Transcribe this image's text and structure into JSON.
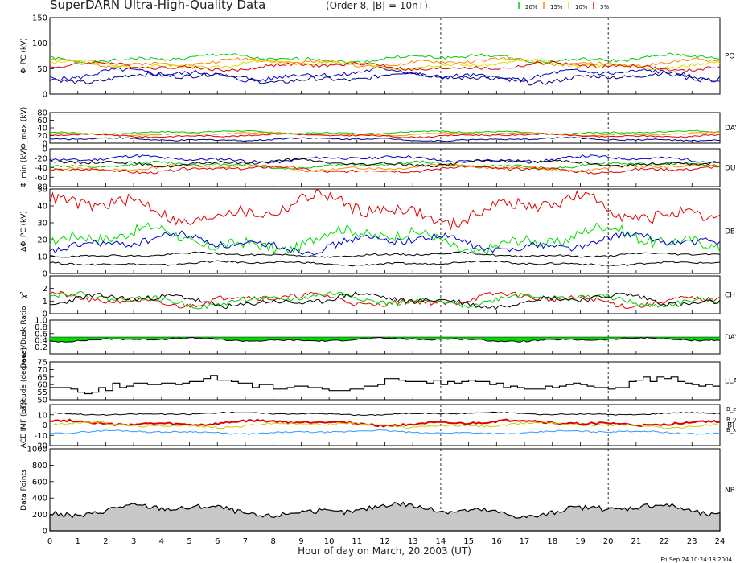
{
  "header": {
    "title": "SuperDARN Ultra-High-Quality Data",
    "subtitle": "(Order 8, |B| = 10nT)",
    "quality_legend": [
      {
        "label": "20%",
        "color": "#00cc00"
      },
      {
        "label": "15%",
        "color": "#ff8800"
      },
      {
        "label": "10%",
        "color": "#dddd00"
      },
      {
        "label": "5%",
        "color": "#dd0000"
      }
    ],
    "timestamp": "Fri Sep 24 10:24:18 2004"
  },
  "colors": {
    "c20": "#00cc00",
    "c15": "#ff8800",
    "c10": "#dddd00",
    "c5": "#dd0000",
    "dark_blue": "#000080",
    "blue": "#0000cc",
    "green": "#00e000",
    "black": "#000000",
    "fill_gray": "#c8c8c8"
  },
  "chart_data": [
    {
      "id": "phi_pc",
      "type": "line",
      "ylabel": "Φ_PC (kV)",
      "ylim": [
        0,
        150
      ],
      "yticks": [
        "0",
        "50",
        "100",
        "150"
      ],
      "side_label": "PO PO",
      "series": [
        {
          "color": "#00cc00",
          "base": 70,
          "amp": 9,
          "seed": 1
        },
        {
          "color": "#ff8800",
          "base": 62,
          "amp": 9,
          "seed": 2
        },
        {
          "color": "#dddd00",
          "base": 58,
          "amp": 9,
          "seed": 3
        },
        {
          "color": "#dd0000",
          "base": 54,
          "amp": 9,
          "seed": 4
        },
        {
          "color": "#0000cc",
          "base": 38,
          "amp": 13,
          "seed": 5
        },
        {
          "color": "#000080",
          "base": 32,
          "amp": 12,
          "seed": 6
        }
      ]
    },
    {
      "id": "phi_max",
      "type": "line",
      "ylabel": "Φ_max (kV)",
      "ylim": [
        0,
        80
      ],
      "yticks": [
        "0",
        "20",
        "40",
        "60",
        "80"
      ],
      "side_label": "DAY",
      "series": [
        {
          "color": "#00cc00",
          "base": 28,
          "amp": 5,
          "seed": 7
        },
        {
          "color": "#ff8800",
          "base": 24,
          "amp": 5,
          "seed": 8
        },
        {
          "color": "#dd0000",
          "base": 20,
          "amp": 5,
          "seed": 9
        },
        {
          "color": "#000080",
          "base": 10,
          "amp": 5,
          "seed": 10
        }
      ]
    },
    {
      "id": "phi_min",
      "type": "line",
      "ylabel": "Φ_min (kV)",
      "ylim": [
        -80,
        0
      ],
      "yticks": [
        "-80",
        "-60",
        "-40",
        "-20",
        "0"
      ],
      "side_label": "DU",
      "series": [
        {
          "color": "#0000cc",
          "base": -22,
          "amp": 8,
          "seed": 11
        },
        {
          "color": "#00cc00",
          "base": -35,
          "amp": 8,
          "seed": 12
        },
        {
          "color": "#ff8800",
          "base": -40,
          "amp": 8,
          "seed": 13
        },
        {
          "color": "#dd0000",
          "base": -44,
          "amp": 8,
          "seed": 14
        },
        {
          "color": "#000000",
          "base": -30,
          "amp": 8,
          "seed": 15
        }
      ]
    },
    {
      "id": "dphi",
      "type": "line",
      "ylabel": "ΔΦ_PC (kV)",
      "ylim": [
        0,
        50
      ],
      "yticks": [
        "0",
        "10",
        "20",
        "30",
        "40",
        "50"
      ],
      "side_label": "DE",
      "series": [
        {
          "color": "#dd0000",
          "base": 38,
          "amp": 10,
          "seed": 16
        },
        {
          "color": "#00e000",
          "base": 20,
          "amp": 9,
          "seed": 17
        },
        {
          "color": "#0000cc",
          "base": 18,
          "amp": 6,
          "seed": 18
        },
        {
          "color": "#000000",
          "base": 11,
          "amp": 1.5,
          "seed": 19
        },
        {
          "color": "#000000",
          "base": 6,
          "amp": 1.5,
          "seed": 20
        }
      ]
    },
    {
      "id": "chi2",
      "type": "line",
      "ylabel": "χ²",
      "ylim": [
        0,
        3
      ],
      "yticks": [
        "0",
        "1",
        "2"
      ],
      "side_label": "CH",
      "series": [
        {
          "color": "#dd0000",
          "base": 1.1,
          "amp": 0.6,
          "seed": 21
        },
        {
          "color": "#00cc00",
          "base": 1.1,
          "amp": 0.6,
          "seed": 22
        },
        {
          "color": "#000000",
          "base": 1.05,
          "amp": 0.6,
          "seed": 23
        }
      ]
    },
    {
      "id": "ratio",
      "type": "area",
      "ylabel": "Dawn/Dusk Ratio",
      "ylim": [
        0,
        1
      ],
      "yticks": [
        "0.2",
        "0.4",
        "0.6",
        "0.8",
        "1.0"
      ],
      "side_label": "DAY",
      "series": [
        {
          "color": "#000000",
          "base": 0.42,
          "amp": 0.06,
          "seed": 24
        }
      ]
    },
    {
      "id": "hmb",
      "type": "step",
      "ylabel": "Latitude (degrees)",
      "ylim": [
        50,
        75
      ],
      "yticks": [
        "50",
        "55",
        "60",
        "65",
        "70",
        "75"
      ],
      "side_label": "LLA",
      "series": [
        {
          "color": "#000000",
          "base": 60,
          "amp": 5,
          "seed": 25
        }
      ]
    },
    {
      "id": "imf",
      "type": "line",
      "ylabel": "ACE IMF (nT)",
      "ylim": [
        -20,
        20
      ],
      "yticks": [
        "-20",
        "-10",
        "0",
        "10"
      ],
      "side_label": "|B|",
      "imf_labels": [
        "B_z",
        "B_y",
        "B_x"
      ],
      "series": [
        {
          "color": "#000000",
          "base": 11,
          "amp": 1.5,
          "seed": 26
        },
        {
          "color": "#dd0000",
          "base": 2,
          "amp": 3,
          "seed": 27
        },
        {
          "color": "#cccc00",
          "base": 0,
          "amp": 3,
          "seed": 28
        },
        {
          "color": "#3399ff",
          "base": -7,
          "amp": 2,
          "seed": 29
        }
      ]
    },
    {
      "id": "npts",
      "type": "area",
      "ylabel": "Data Points",
      "ylim": [
        0,
        1000
      ],
      "yticks": [
        "0",
        "200",
        "400",
        "600",
        "800",
        "1000"
      ],
      "side_label": "NP",
      "series": [
        {
          "color": "#000000",
          "base": 250,
          "amp": 90,
          "seed": 30
        }
      ]
    }
  ],
  "xaxis": {
    "label": "Hour of day on March, 20 2003 (UT)",
    "ticks": [
      "0",
      "1",
      "2",
      "3",
      "4",
      "5",
      "6",
      "7",
      "8",
      "9",
      "10",
      "11",
      "12",
      "13",
      "14",
      "15",
      "16",
      "17",
      "18",
      "19",
      "20",
      "21",
      "22",
      "23",
      "24"
    ],
    "range": [
      0,
      24
    ],
    "markers": [
      14,
      20
    ]
  }
}
